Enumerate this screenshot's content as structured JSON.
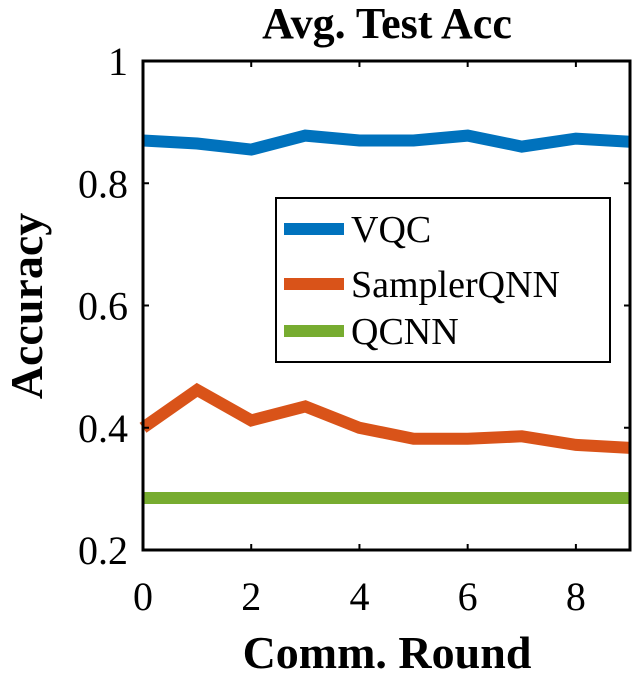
{
  "chart_data": {
    "type": "line",
    "title": "Avg. Test Acc",
    "xlabel": "Comm. Round",
    "ylabel": "Accuracy",
    "xlim": [
      0,
      9
    ],
    "ylim": [
      0.2,
      1.0
    ],
    "x_ticks": [
      0,
      2,
      4,
      6,
      8
    ],
    "x_tick_labels": [
      "0",
      "2",
      "4",
      "6",
      "8"
    ],
    "y_ticks": [
      0.2,
      0.4,
      0.6,
      0.8,
      1.0
    ],
    "y_tick_labels": [
      "0.2",
      "0.4",
      "0.6",
      "0.8",
      "1"
    ],
    "legend_position": "center-right",
    "grid": false,
    "x": [
      0,
      1,
      2,
      3,
      4,
      5,
      6,
      7,
      8,
      9
    ],
    "series": [
      {
        "name": "VQC",
        "color": "#0072BD",
        "values": [
          0.87,
          0.865,
          0.855,
          0.878,
          0.87,
          0.87,
          0.878,
          0.86,
          0.873,
          0.868
        ]
      },
      {
        "name": "SamplerQNN",
        "color": "#D95319",
        "values": [
          0.4,
          0.462,
          0.412,
          0.435,
          0.4,
          0.382,
          0.382,
          0.386,
          0.372,
          0.367
        ]
      },
      {
        "name": "QCNN",
        "color": "#77AC30",
        "values": [
          0.285,
          0.285,
          0.285,
          0.285,
          0.285,
          0.285,
          0.285,
          0.285,
          0.285,
          0.285
        ]
      }
    ]
  }
}
